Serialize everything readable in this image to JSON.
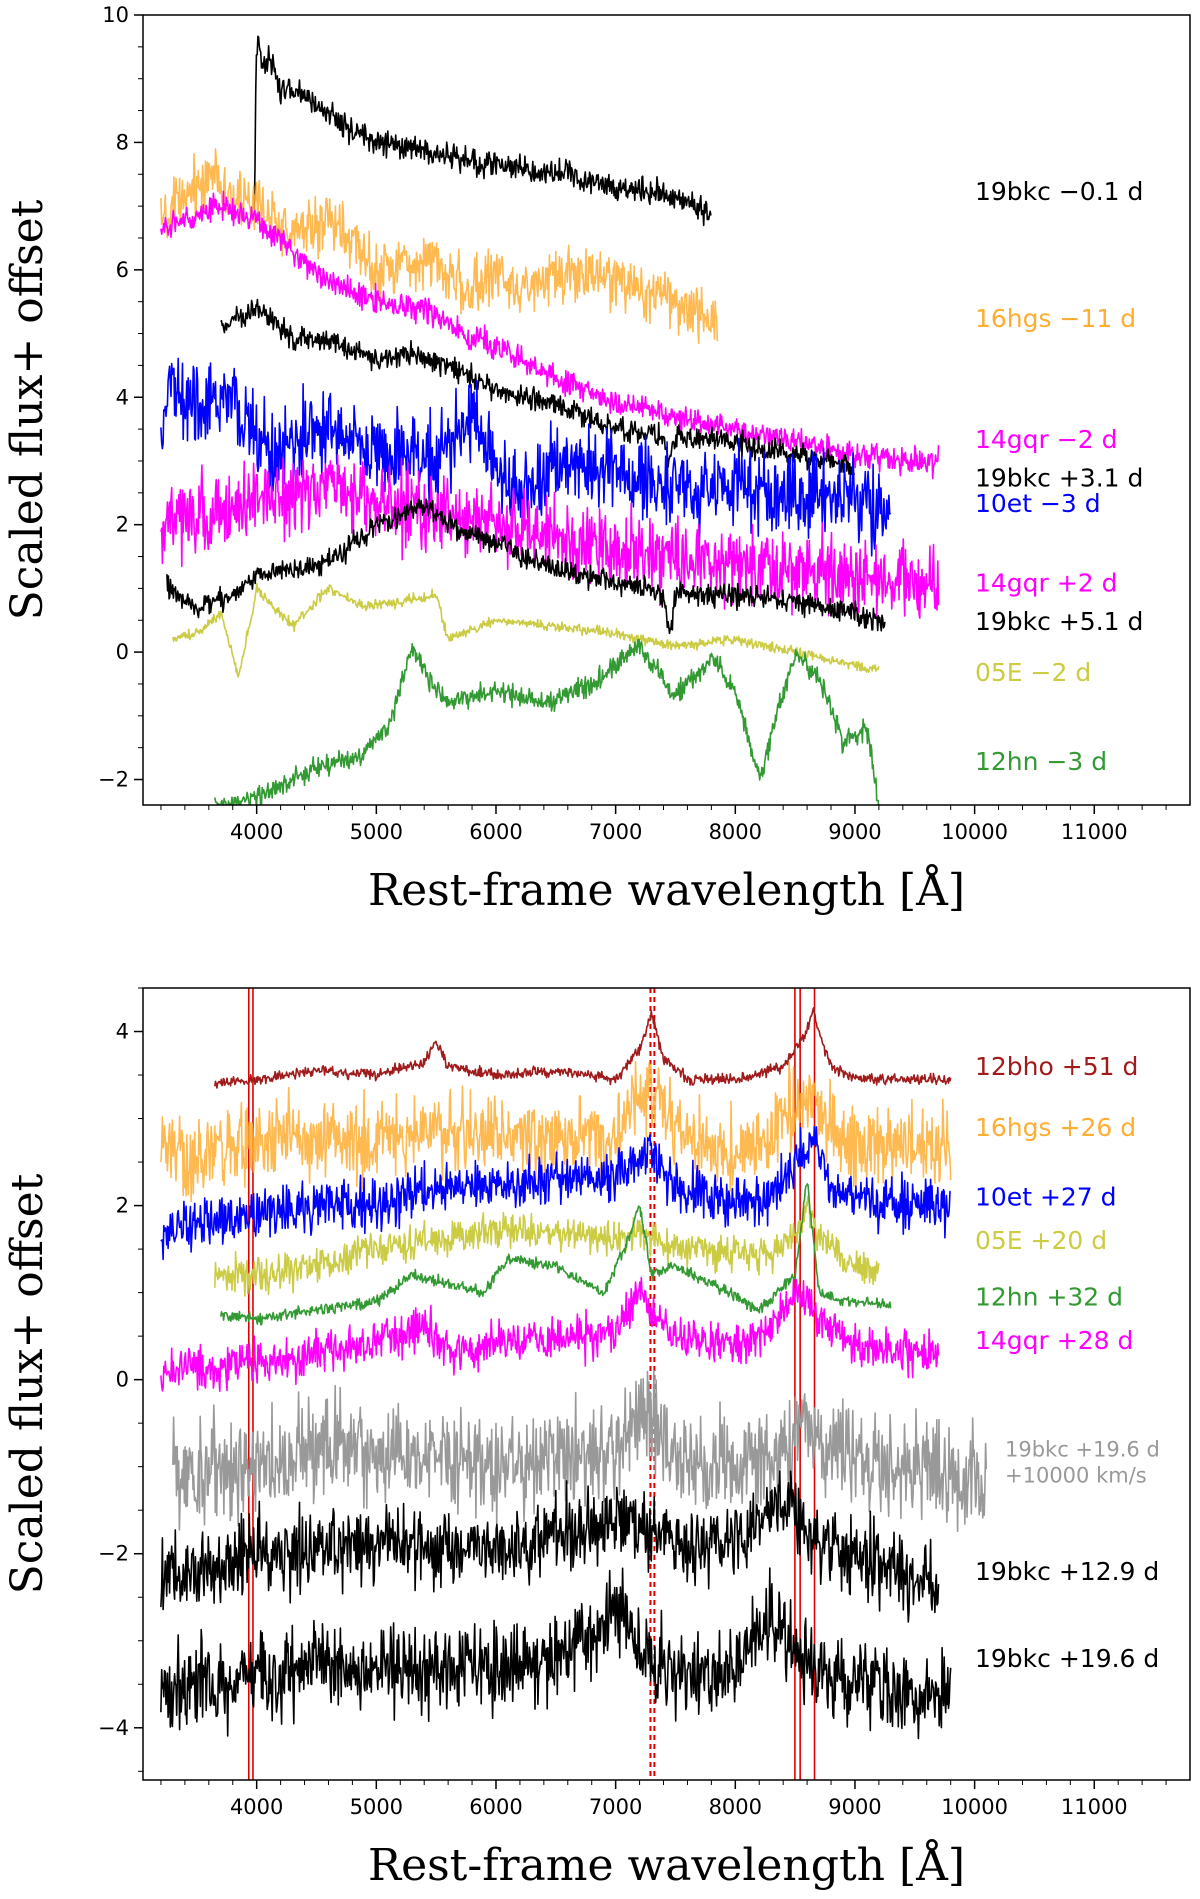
{
  "chart_data": [
    {
      "type": "line",
      "xlabel": "Rest-frame wavelength [Å]",
      "ylabel": "Scaled flux+ offset",
      "xlim": [
        3050,
        11800
      ],
      "ylim": [
        -2.4,
        10
      ],
      "x_ticks": [
        4000,
        5000,
        6000,
        7000,
        8000,
        9000,
        10000,
        11000
      ],
      "y_ticks": [
        -2,
        0,
        2,
        4,
        6,
        8,
        10
      ],
      "grid": false,
      "series": [
        {
          "name": "19bkc −0.1 d",
          "color": "#000000",
          "noise": 0.1,
          "label_y": 7.1,
          "x": [
            3980,
            4000,
            4050,
            4100,
            4200,
            4300,
            4500,
            4800,
            5000,
            5300,
            5500,
            5800,
            6200,
            6600,
            7000,
            7400,
            7800
          ],
          "y": [
            7.0,
            9.6,
            9.2,
            9.4,
            8.8,
            8.8,
            8.6,
            8.2,
            8.0,
            7.9,
            7.8,
            7.7,
            7.6,
            7.5,
            7.3,
            7.2,
            6.9
          ]
        },
        {
          "name": "16hgs −11 d",
          "color": "#ffad33",
          "noise": 0.22,
          "label_y": 5.1,
          "x": [
            3200,
            3500,
            3650,
            3800,
            4000,
            4300,
            4600,
            5000,
            5400,
            5600,
            5800,
            6000,
            6200,
            6600,
            7000,
            7400,
            7850
          ],
          "y": [
            6.7,
            7.3,
            7.6,
            7.1,
            7.0,
            6.6,
            6.8,
            6.0,
            6.2,
            6.0,
            5.6,
            6.0,
            5.7,
            5.9,
            5.8,
            5.6,
            5.2
          ]
        },
        {
          "name": "14gqr −2 d",
          "color": "#ff00ff",
          "noise": 0.1,
          "label_y": 3.2,
          "x": [
            3200,
            3400,
            3700,
            4000,
            4300,
            4600,
            5000,
            5400,
            5700,
            6000,
            6500,
            7000,
            7500,
            8000,
            8500,
            9000,
            9500,
            9700
          ],
          "y": [
            6.6,
            6.8,
            7.0,
            6.8,
            6.3,
            5.8,
            5.5,
            5.4,
            5.0,
            4.8,
            4.3,
            3.9,
            3.7,
            3.5,
            3.3,
            3.1,
            3.0,
            3.0
          ]
        },
        {
          "name": "19bkc +3.1 d",
          "color": "#000000",
          "noise": 0.09,
          "label_y": 2.6,
          "x": [
            3700,
            3900,
            4000,
            4300,
            4600,
            5000,
            5300,
            5600,
            6000,
            6500,
            7000,
            7400,
            7450,
            7500,
            8000,
            8500,
            9000
          ],
          "y": [
            5.1,
            5.3,
            5.4,
            4.9,
            4.9,
            4.6,
            4.7,
            4.5,
            4.1,
            3.9,
            3.5,
            3.4,
            3.0,
            3.4,
            3.3,
            3.1,
            2.9
          ]
        },
        {
          "name": "10et −3 d",
          "color": "#0000ff",
          "noise": 0.32,
          "label_y": 2.2,
          "x": [
            3200,
            3300,
            3500,
            3800,
            4100,
            4500,
            5000,
            5500,
            5800,
            6000,
            6200,
            6500,
            7000,
            7500,
            8000,
            8500,
            9000,
            9300
          ],
          "y": [
            3.7,
            4.2,
            3.8,
            3.9,
            3.2,
            3.5,
            3.1,
            3.0,
            3.6,
            3.0,
            2.5,
            3.0,
            2.8,
            2.6,
            2.6,
            2.4,
            2.4,
            2.3
          ]
        },
        {
          "name": "14gqr +2 d",
          "color": "#ff00ff",
          "noise": 0.3,
          "label_y": 0.95,
          "x": [
            3200,
            3400,
            3700,
            4000,
            4300,
            4600,
            5000,
            5400,
            6000,
            6500,
            7000,
            7500,
            8000,
            8500,
            9000,
            9500,
            9700
          ],
          "y": [
            1.9,
            2.1,
            2.2,
            2.4,
            2.5,
            2.6,
            2.4,
            2.2,
            2.0,
            1.8,
            1.6,
            1.5,
            1.4,
            1.3,
            1.2,
            1.1,
            1.0
          ]
        },
        {
          "name": "19bkc +5.1 d",
          "color": "#000000",
          "noise": 0.09,
          "label_y": 0.35,
          "x": [
            3250,
            3500,
            3800,
            4000,
            4300,
            4600,
            5000,
            5400,
            5700,
            6000,
            6500,
            7000,
            7400,
            7450,
            7500,
            8000,
            8500,
            9000,
            9250
          ],
          "y": [
            1.0,
            0.7,
            0.9,
            1.2,
            1.3,
            1.4,
            2.0,
            2.3,
            1.9,
            1.7,
            1.3,
            1.1,
            0.9,
            0.3,
            0.9,
            0.9,
            0.8,
            0.6,
            0.4
          ]
        },
        {
          "name": "05E −2 d",
          "color": "#cccc44",
          "noise": 0.04,
          "label_y": -0.45,
          "x": [
            3300,
            3500,
            3700,
            3850,
            4000,
            4300,
            4600,
            4900,
            5200,
            5500,
            5600,
            6000,
            6500,
            7000,
            7500,
            8000,
            8500,
            9000,
            9200
          ],
          "y": [
            0.2,
            0.3,
            0.6,
            -0.4,
            1.0,
            0.4,
            1.0,
            0.7,
            0.8,
            0.9,
            0.2,
            0.5,
            0.4,
            0.3,
            0.1,
            0.2,
            0.0,
            -0.2,
            -0.3
          ]
        },
        {
          "name": "12hn −3 d",
          "color": "#339933",
          "noise": 0.08,
          "label_y": -1.85,
          "x": [
            3650,
            4000,
            4500,
            4800,
            5100,
            5300,
            5400,
            5600,
            6000,
            6400,
            6800,
            7200,
            7500,
            7800,
            8000,
            8200,
            8500,
            8700,
            8900,
            9100,
            9200
          ],
          "y": [
            -2.4,
            -2.3,
            -1.8,
            -1.7,
            -1.2,
            0.1,
            -0.3,
            -0.8,
            -0.6,
            -0.8,
            -0.5,
            0.1,
            -0.7,
            -0.1,
            -0.6,
            -2.0,
            0.0,
            -0.4,
            -1.4,
            -1.2,
            -2.4
          ]
        }
      ]
    },
    {
      "type": "line",
      "xlabel": "Rest-frame wavelength [Å]",
      "ylabel": "Scaled flux+ offset",
      "xlim": [
        3050,
        11800
      ],
      "ylim": [
        -4.6,
        4.5
      ],
      "x_ticks": [
        4000,
        5000,
        6000,
        7000,
        8000,
        9000,
        10000,
        11000
      ],
      "y_ticks": [
        -4,
        -2,
        0,
        2,
        4
      ],
      "grid": false,
      "vlines_solid": [
        3934,
        3969,
        8498,
        8542,
        8662
      ],
      "vlines_dashed": [
        7291,
        7324
      ],
      "series": [
        {
          "name": "12bho +51 d",
          "color": "#a01c1c",
          "noise": 0.03,
          "label_y": 3.5,
          "x": [
            3650,
            4000,
            4500,
            5000,
            5400,
            5500,
            5600,
            6000,
            6500,
            7000,
            7200,
            7300,
            7400,
            7600,
            8000,
            8400,
            8600,
            8650,
            8700,
            8800,
            9000,
            9500,
            9800
          ],
          "y": [
            3.4,
            3.45,
            3.55,
            3.5,
            3.65,
            3.9,
            3.6,
            3.5,
            3.55,
            3.45,
            3.8,
            4.2,
            3.7,
            3.45,
            3.45,
            3.6,
            4.0,
            4.25,
            4.0,
            3.6,
            3.45,
            3.45,
            3.45
          ]
        },
        {
          "name": "16hgs +26 d",
          "color": "#ffad33",
          "noise": 0.22,
          "label_y": 2.8,
          "x": [
            3200,
            3500,
            4000,
            4500,
            5000,
            5500,
            6000,
            6500,
            7000,
            7300,
            7500,
            8000,
            8300,
            8600,
            8700,
            9000,
            9500,
            9800
          ],
          "y": [
            2.6,
            2.6,
            2.7,
            2.8,
            2.7,
            2.9,
            2.8,
            2.8,
            2.8,
            3.4,
            2.8,
            2.6,
            2.8,
            3.3,
            3.0,
            2.7,
            2.7,
            2.7
          ]
        },
        {
          "name": "10et +27 d",
          "color": "#0000ff",
          "noise": 0.14,
          "label_y": 2.0,
          "x": [
            3200,
            3400,
            4000,
            4500,
            5000,
            5500,
            6000,
            6500,
            7000,
            7300,
            7500,
            8000,
            8300,
            8650,
            8800,
            9000,
            9500,
            9800
          ],
          "y": [
            1.6,
            1.8,
            1.9,
            2.0,
            2.0,
            2.2,
            2.2,
            2.3,
            2.3,
            2.6,
            2.2,
            2.0,
            2.1,
            2.8,
            2.2,
            2.1,
            2.0,
            2.0
          ]
        },
        {
          "name": "05E +20 d",
          "color": "#cccc44",
          "noise": 0.1,
          "label_y": 1.5,
          "x": [
            3650,
            4000,
            4500,
            5000,
            5500,
            6000,
            6500,
            7000,
            7200,
            7400,
            7800,
            8200,
            8500,
            8600,
            8700,
            9000,
            9200
          ],
          "y": [
            1.2,
            1.2,
            1.3,
            1.5,
            1.6,
            1.7,
            1.7,
            1.6,
            1.7,
            1.5,
            1.5,
            1.4,
            1.6,
            2.0,
            1.6,
            1.3,
            1.2
          ]
        },
        {
          "name": "12hn +32 d",
          "color": "#339933",
          "noise": 0.03,
          "label_y": 0.85,
          "x": [
            3700,
            4000,
            4500,
            5000,
            5300,
            5600,
            5900,
            6100,
            6500,
            6900,
            7100,
            7200,
            7300,
            7500,
            7800,
            8200,
            8500,
            8600,
            8700,
            8900,
            9100,
            9300
          ],
          "y": [
            0.75,
            0.7,
            0.8,
            0.9,
            1.2,
            1.1,
            1.0,
            1.4,
            1.3,
            1.0,
            1.6,
            2.0,
            1.2,
            1.3,
            1.1,
            0.8,
            1.2,
            2.3,
            1.0,
            0.9,
            0.9,
            0.85
          ]
        },
        {
          "name": "14gqr +28 d",
          "color": "#ff00ff",
          "noise": 0.12,
          "label_y": 0.35,
          "x": [
            3200,
            3500,
            4000,
            4500,
            5000,
            5400,
            5600,
            6000,
            6500,
            7000,
            7200,
            7500,
            8000,
            8300,
            8500,
            8600,
            8800,
            9000,
            9500,
            9700
          ],
          "y": [
            0.1,
            0.15,
            0.2,
            0.3,
            0.4,
            0.6,
            0.3,
            0.4,
            0.5,
            0.5,
            1.0,
            0.5,
            0.4,
            0.6,
            1.0,
            0.9,
            0.6,
            0.4,
            0.3,
            0.3
          ]
        },
        {
          "name": "19bkc +19.6 d +10000 km/s",
          "color": "#999999",
          "noise": 0.28,
          "label_y": -1.0,
          "x": [
            3300,
            3500,
            4000,
            4500,
            5000,
            5500,
            6000,
            6500,
            7000,
            7250,
            7500,
            8000,
            8300,
            8600,
            8800,
            9200,
            9600,
            10000,
            10100
          ],
          "y": [
            -1.0,
            -1.1,
            -1.0,
            -0.8,
            -0.8,
            -0.9,
            -1.0,
            -0.9,
            -0.8,
            -0.3,
            -0.9,
            -1.0,
            -0.9,
            -0.5,
            -0.8,
            -1.0,
            -1.1,
            -1.2,
            -1.2
          ]
        },
        {
          "name": "19bkc +12.9 d",
          "color": "#000000",
          "noise": 0.22,
          "label_y": -2.3,
          "x": [
            3200,
            3500,
            4000,
            4500,
            5000,
            5500,
            6000,
            6500,
            7000,
            7200,
            7500,
            8000,
            8300,
            8500,
            8800,
            9200,
            9700
          ],
          "y": [
            -2.3,
            -2.2,
            -2.0,
            -2.0,
            -1.9,
            -1.9,
            -1.9,
            -1.8,
            -1.6,
            -1.7,
            -1.9,
            -1.9,
            -1.4,
            -1.6,
            -1.9,
            -2.1,
            -2.4
          ]
        },
        {
          "name": "19bkc +19.6 d",
          "color": "#000000",
          "noise": 0.24,
          "label_y": -3.3,
          "x": [
            3200,
            3500,
            4000,
            4500,
            5000,
            5500,
            6000,
            6500,
            6800,
            7000,
            7200,
            7500,
            8000,
            8300,
            8500,
            8800,
            9200,
            9600,
            9800
          ],
          "y": [
            -3.6,
            -3.5,
            -3.4,
            -3.3,
            -3.3,
            -3.3,
            -3.3,
            -3.2,
            -2.9,
            -2.6,
            -3.1,
            -3.4,
            -3.3,
            -2.7,
            -3.2,
            -3.4,
            -3.5,
            -3.7,
            -3.6
          ]
        }
      ]
    }
  ]
}
